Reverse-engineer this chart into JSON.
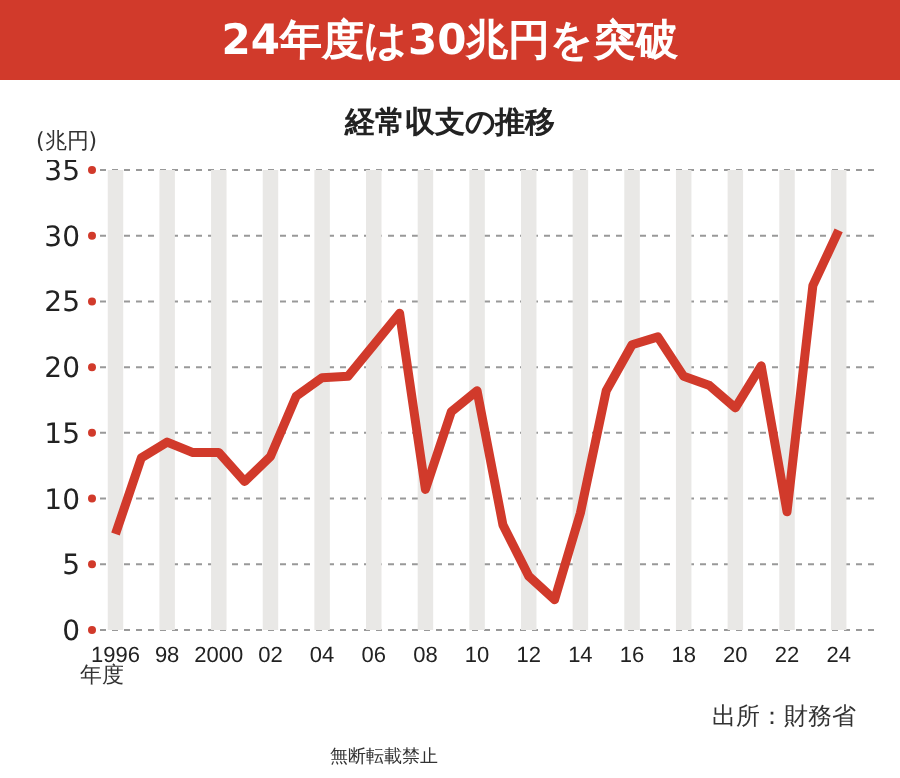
{
  "chart_data": {
    "type": "line",
    "title": "24年度は30兆円を突破",
    "subtitle": "経常収支の推移",
    "ylabel": "(兆円)",
    "xlabel": "年度",
    "categories": [
      "1996",
      null,
      "98",
      null,
      "2000",
      null,
      "02",
      null,
      "04",
      null,
      "06",
      null,
      "08",
      null,
      "10",
      null,
      "12",
      null,
      "14",
      null,
      "16",
      null,
      "18",
      null,
      "20",
      null,
      "22",
      null,
      "24"
    ],
    "series": [
      {
        "color": "#d13a2b",
        "values": [
          7.3,
          13.1,
          14.3,
          13.5,
          13.5,
          11.3,
          13.2,
          17.8,
          19.2,
          19.3,
          21.7,
          24.1,
          10.7,
          16.6,
          18.2,
          8.0,
          4.1,
          2.3,
          8.9,
          18.2,
          21.7,
          22.3,
          19.3,
          18.6,
          16.9,
          20.1,
          9.0,
          26.2,
          30.4
        ]
      }
    ],
    "ylim": [
      0,
      35
    ],
    "yticks": [
      0,
      5,
      10,
      15,
      20,
      25,
      30,
      35
    ],
    "grid": "y",
    "marker": "none",
    "line_style": "solid",
    "bands": [
      {
        "axis": "x",
        "from": "1996",
        "to": "1996",
        "color": "#e9e8e6"
      },
      {
        "axis": "x",
        "from": "98",
        "to": "98",
        "color": "#e9e8e6"
      },
      {
        "axis": "x",
        "from": "2000",
        "to": "2000",
        "color": "#e9e8e6"
      },
      {
        "axis": "x",
        "from": "02",
        "to": "02",
        "color": "#e9e8e6"
      },
      {
        "axis": "x",
        "from": "04",
        "to": "04",
        "color": "#e9e8e6"
      },
      {
        "axis": "x",
        "from": "06",
        "to": "06",
        "color": "#e9e8e6"
      },
      {
        "axis": "x",
        "from": "08",
        "to": "08",
        "color": "#e9e8e6"
      },
      {
        "axis": "x",
        "from": "10",
        "to": "10",
        "color": "#e9e8e6"
      },
      {
        "axis": "x",
        "from": "12",
        "to": "12",
        "color": "#e9e8e6"
      },
      {
        "axis": "x",
        "from": "14",
        "to": "14",
        "color": "#e9e8e6"
      },
      {
        "axis": "x",
        "from": "16",
        "to": "16",
        "color": "#e9e8e6"
      },
      {
        "axis": "x",
        "from": "18",
        "to": "18",
        "color": "#e9e8e6"
      },
      {
        "axis": "x",
        "from": "20",
        "to": "20",
        "color": "#e9e8e6"
      },
      {
        "axis": "x",
        "from": "22",
        "to": "22",
        "color": "#e9e8e6"
      },
      {
        "axis": "x",
        "from": "24",
        "to": "24",
        "color": "#e9e8e6"
      }
    ],
    "annotations": [
      "出所：財務省",
      "無断転載禁止"
    ]
  }
}
